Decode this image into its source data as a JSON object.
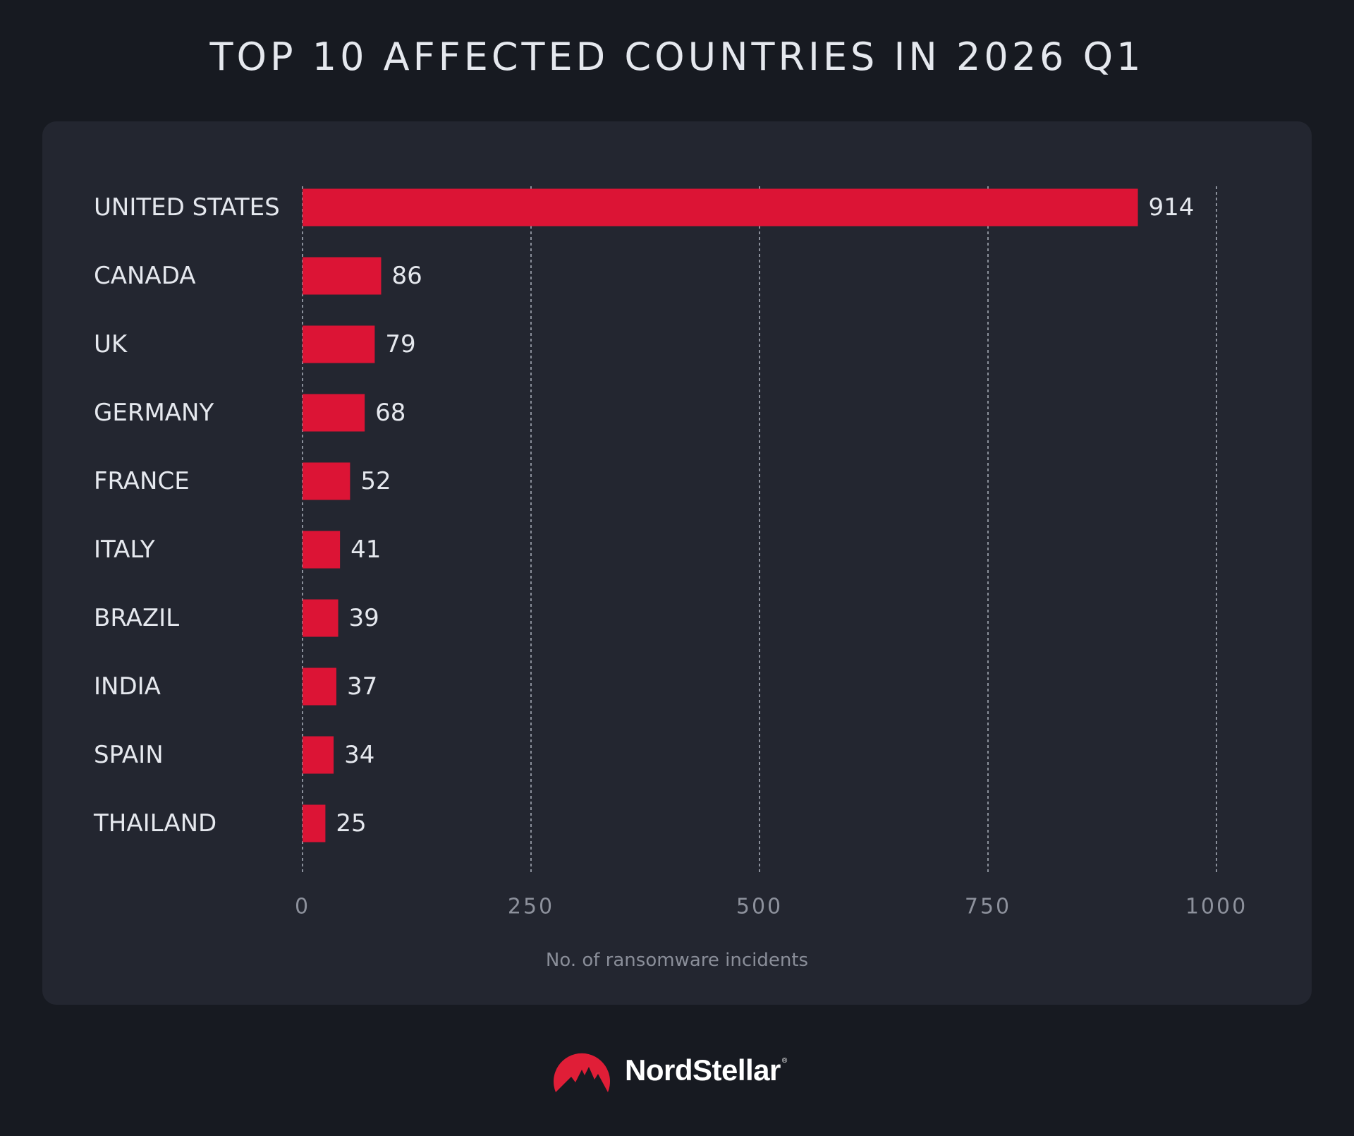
{
  "page": {
    "title": "TOP 10 AFFECTED COUNTRIES IN 2026 Q1"
  },
  "colors": {
    "background": "#171a21",
    "card": "#232630",
    "bar": "#dc1435",
    "grid": "#8a8f9a",
    "label": "#e5e8ee",
    "tick": "#8d919c",
    "axis_label": "#8a8e99",
    "brand_red": "#e01e37"
  },
  "chart_data": {
    "type": "bar",
    "orientation": "horizontal",
    "title": "TOP 10 AFFECTED COUNTRIES IN 2026 Q1",
    "categories": [
      "UNITED STATES",
      "CANADA",
      "UK",
      "GERMANY",
      "FRANCE",
      "ITALY",
      "BRAZIL",
      "INDIA",
      "SPAIN",
      "THAILAND"
    ],
    "values": [
      914,
      86,
      79,
      68,
      52,
      41,
      39,
      37,
      34,
      25
    ],
    "xlabel": "No. of ransomware incidents",
    "ylabel": "",
    "xlim": [
      0,
      1000
    ],
    "x_ticks": [
      0,
      250,
      500,
      750,
      1000
    ],
    "grid": true,
    "grid_style": "dashed vertical",
    "data_labels": true,
    "legend": "none"
  },
  "footer": {
    "brand_name": "NordStellar",
    "brand_mark": "®",
    "logo_icon": "mountain-logo-icon"
  }
}
